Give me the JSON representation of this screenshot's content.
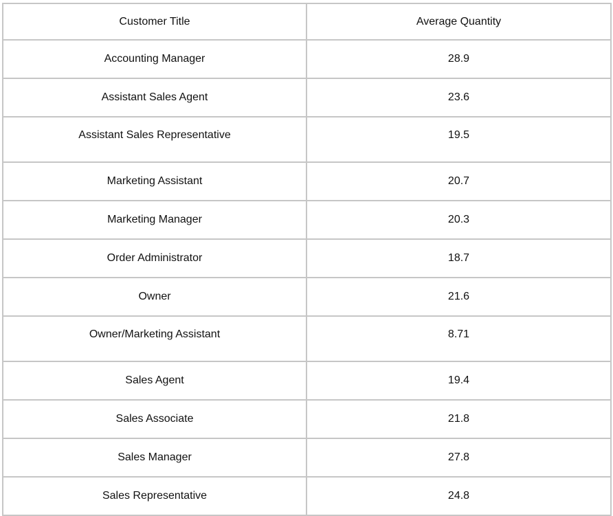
{
  "chart_data": {
    "type": "table",
    "columns": [
      "Customer Title",
      "Average Quantity"
    ],
    "rows": [
      [
        "Accounting Manager",
        "28.9"
      ],
      [
        "Assistant Sales Agent",
        "23.6"
      ],
      [
        "Assistant Sales Representative",
        "19.5"
      ],
      [
        "Marketing Assistant",
        "20.7"
      ],
      [
        "Marketing Manager",
        "20.3"
      ],
      [
        "Order Administrator",
        "18.7"
      ],
      [
        "Owner",
        "21.6"
      ],
      [
        "Owner/Marketing Assistant",
        "8.71"
      ],
      [
        "Sales Agent",
        "19.4"
      ],
      [
        "Sales Associate",
        "21.8"
      ],
      [
        "Sales Manager",
        "27.8"
      ],
      [
        "Sales Representative",
        "24.8"
      ]
    ]
  }
}
